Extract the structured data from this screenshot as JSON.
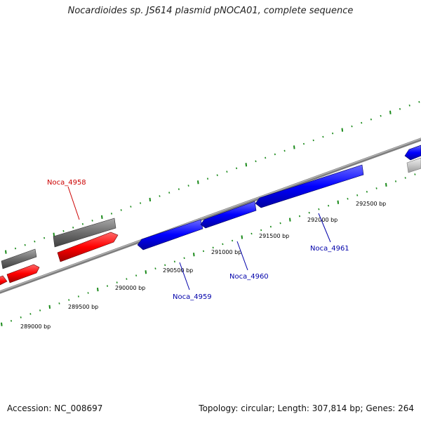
{
  "title": "Nocardioides sp. JS614 plasmid pNOCA01, complete sequence",
  "footer": {
    "accession": "Accession: NC_008697",
    "topology": "Topology: circular; Length: 307,814 bp; Genes: 264"
  },
  "colors": {
    "backbone": "#8c8c8c",
    "minor_tick": "#1a8a1a",
    "gene_forward": "#ff0000",
    "gene_reverse": "#0000ff",
    "gene_grey": "#6e6e6e",
    "gene_light": "#c8c8c8",
    "label_forward": "#cc0000",
    "label_reverse": "#0000aa"
  },
  "scale_labels": [
    {
      "text": "289000 bp"
    },
    {
      "text": "289500 bp"
    },
    {
      "text": "290000 bp"
    },
    {
      "text": "290500 bp"
    },
    {
      "text": "291000 bp"
    },
    {
      "text": "291500 bp"
    },
    {
      "text": "292000 bp"
    },
    {
      "text": "292500 bp"
    }
  ],
  "gene_labels": [
    {
      "text": "Noca_4958",
      "strand": "forward"
    },
    {
      "text": "Noca_4959",
      "strand": "reverse"
    },
    {
      "text": "Noca_4960",
      "strand": "reverse"
    },
    {
      "text": "Noca_4961",
      "strand": "reverse"
    }
  ]
}
